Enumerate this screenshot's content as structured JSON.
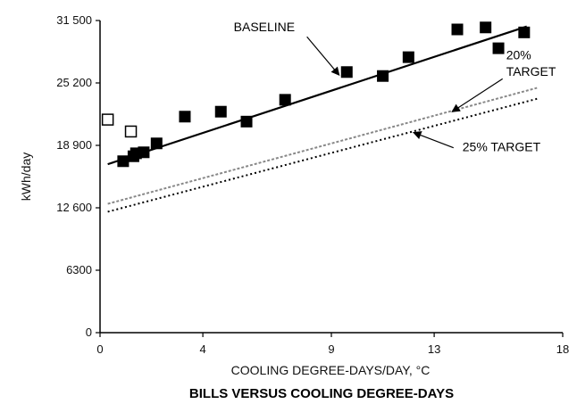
{
  "chart_data": {
    "type": "scatter",
    "title": "BILLS VERSUS COOLING DEGREE-DAYS",
    "xlabel": "COOLING DEGREE-DAYS/DAY, °C",
    "ylabel": "kWh/day",
    "xlim": [
      0,
      18
    ],
    "ylim": [
      0,
      31500
    ],
    "x_ticks": [
      0,
      4,
      9,
      13,
      18
    ],
    "x_tick_labels": [
      "0",
      "4",
      "9",
      "13",
      "18"
    ],
    "y_ticks": [
      0,
      6300,
      12600,
      18900,
      25200,
      31500
    ],
    "y_tick_labels": [
      "0",
      "6300",
      "12 600",
      "18 900",
      "25 200",
      "31 500"
    ],
    "grid": false,
    "series": [
      {
        "marker": "filled-square",
        "color": "#000000",
        "points": [
          {
            "x": 0.9,
            "y": 17300
          },
          {
            "x": 1.3,
            "y": 17800
          },
          {
            "x": 1.4,
            "y": 18100
          },
          {
            "x": 1.7,
            "y": 18200
          },
          {
            "x": 2.2,
            "y": 19100
          },
          {
            "x": 3.3,
            "y": 21800
          },
          {
            "x": 4.7,
            "y": 22300
          },
          {
            "x": 5.7,
            "y": 21300
          },
          {
            "x": 7.2,
            "y": 23500
          },
          {
            "x": 9.6,
            "y": 26300
          },
          {
            "x": 11.0,
            "y": 25900
          },
          {
            "x": 12.0,
            "y": 27800
          },
          {
            "x": 13.9,
            "y": 30600
          },
          {
            "x": 15.0,
            "y": 30800
          },
          {
            "x": 15.5,
            "y": 28700
          },
          {
            "x": 16.5,
            "y": 30300
          }
        ]
      },
      {
        "marker": "open-square",
        "color": "#000000",
        "points": [
          {
            "x": 0.3,
            "y": 21500
          },
          {
            "x": 1.2,
            "y": 20300
          }
        ]
      },
      {
        "type": "line",
        "style": "solid",
        "color": "#000000",
        "points": [
          {
            "x": 0.3,
            "y": 17000
          },
          {
            "x": 16.6,
            "y": 30900
          }
        ]
      },
      {
        "type": "line",
        "style": "dashed",
        "color": "#888888",
        "points": [
          {
            "x": 0.3,
            "y": 13000
          },
          {
            "x": 17.0,
            "y": 24700
          }
        ]
      },
      {
        "type": "line",
        "style": "dotted",
        "color": "#000000",
        "points": [
          {
            "x": 0.3,
            "y": 12200
          },
          {
            "x": 17.0,
            "y": 23600
          }
        ]
      }
    ],
    "annotations": [
      {
        "id": "baseline",
        "text": "BASELINE",
        "text_x": 5.2,
        "text_y": 30400,
        "arrow_to_x": 9.3,
        "arrow_to_y": 26000
      },
      {
        "id": "target20-a",
        "text": "20%",
        "text_x": 15.8,
        "text_y": 27600,
        "arrow_to_x": 13.7,
        "arrow_to_y": 22300
      },
      {
        "id": "target20-b",
        "text": "TARGET",
        "text_x": 15.8,
        "text_y": 25900
      },
      {
        "id": "target25",
        "text": "25% TARGET",
        "text_x": 14.1,
        "text_y": 18300,
        "arrow_to_x": 12.2,
        "arrow_to_y": 20200
      }
    ]
  }
}
